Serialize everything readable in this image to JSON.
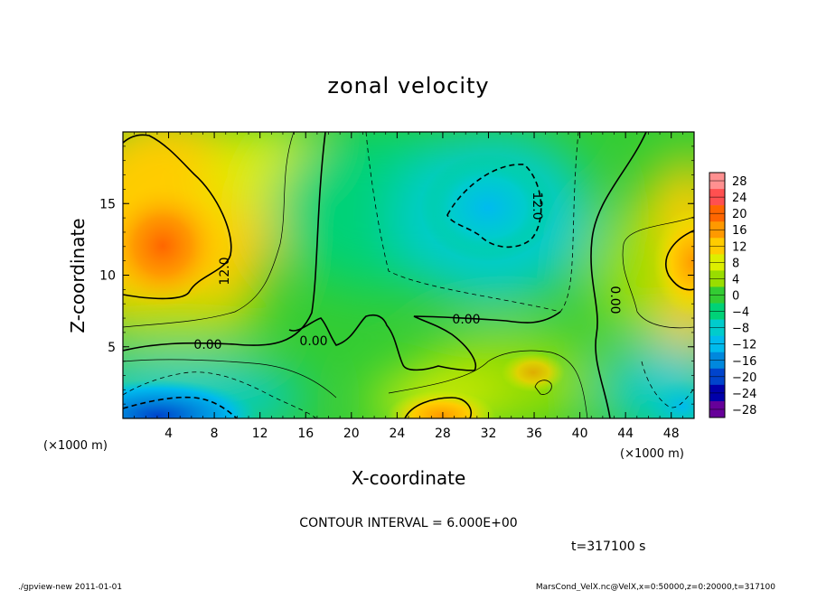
{
  "chart_data": {
    "type": "contour",
    "title": "zonal velocity",
    "xlabel": "X-coordinate",
    "ylabel": "Z-coordinate",
    "x_unit_label": "(×1000 m)",
    "y_unit_label": "(×1000 m)",
    "xlim": [
      0,
      50
    ],
    "ylim": [
      0,
      20
    ],
    "xticks": [
      "4",
      "8",
      "12",
      "16",
      "20",
      "24",
      "28",
      "32",
      "36",
      "40",
      "44",
      "48"
    ],
    "yticks": [
      "5",
      "10",
      "15"
    ],
    "contour_interval_text": "CONTOUR INTERVAL = 6.000E+00",
    "time_text": "t=317100 s",
    "contour_labels": [
      "12.0",
      "0.00",
      "0.00",
      "0.00",
      "12.0",
      "0.00"
    ],
    "colorbar": {
      "labels": [
        "28",
        "24",
        "20",
        "16",
        "12",
        "8",
        "4",
        "0",
        "−4",
        "−8",
        "−12",
        "−16",
        "−20",
        "−24",
        "−28"
      ],
      "colors": [
        "#ff9090",
        "#ff5050",
        "#ff6600",
        "#ff9900",
        "#ffcc00",
        "#ddee00",
        "#99dd00",
        "#33cc33",
        "#00d277",
        "#00cccc",
        "#00bbee",
        "#0088dd",
        "#0044cc",
        "#0000aa",
        "#660099"
      ]
    },
    "extremes": [
      {
        "x": 3.5,
        "z": 12,
        "value": 22
      },
      {
        "x": 49,
        "z": 12,
        "value": 16
      },
      {
        "x": 34,
        "z": 15,
        "value": -14
      },
      {
        "x": 28.5,
        "z": 0.5,
        "value": 16
      },
      {
        "x": 3,
        "z": 0.5,
        "value": -20
      },
      {
        "x": 48,
        "z": 1,
        "value": -10
      }
    ]
  },
  "footer": {
    "left": "./gpview-new  2011-01-01",
    "right": "MarsCond_VelX.nc@VelX,x=0:50000,z=0:20000,t=317100"
  }
}
